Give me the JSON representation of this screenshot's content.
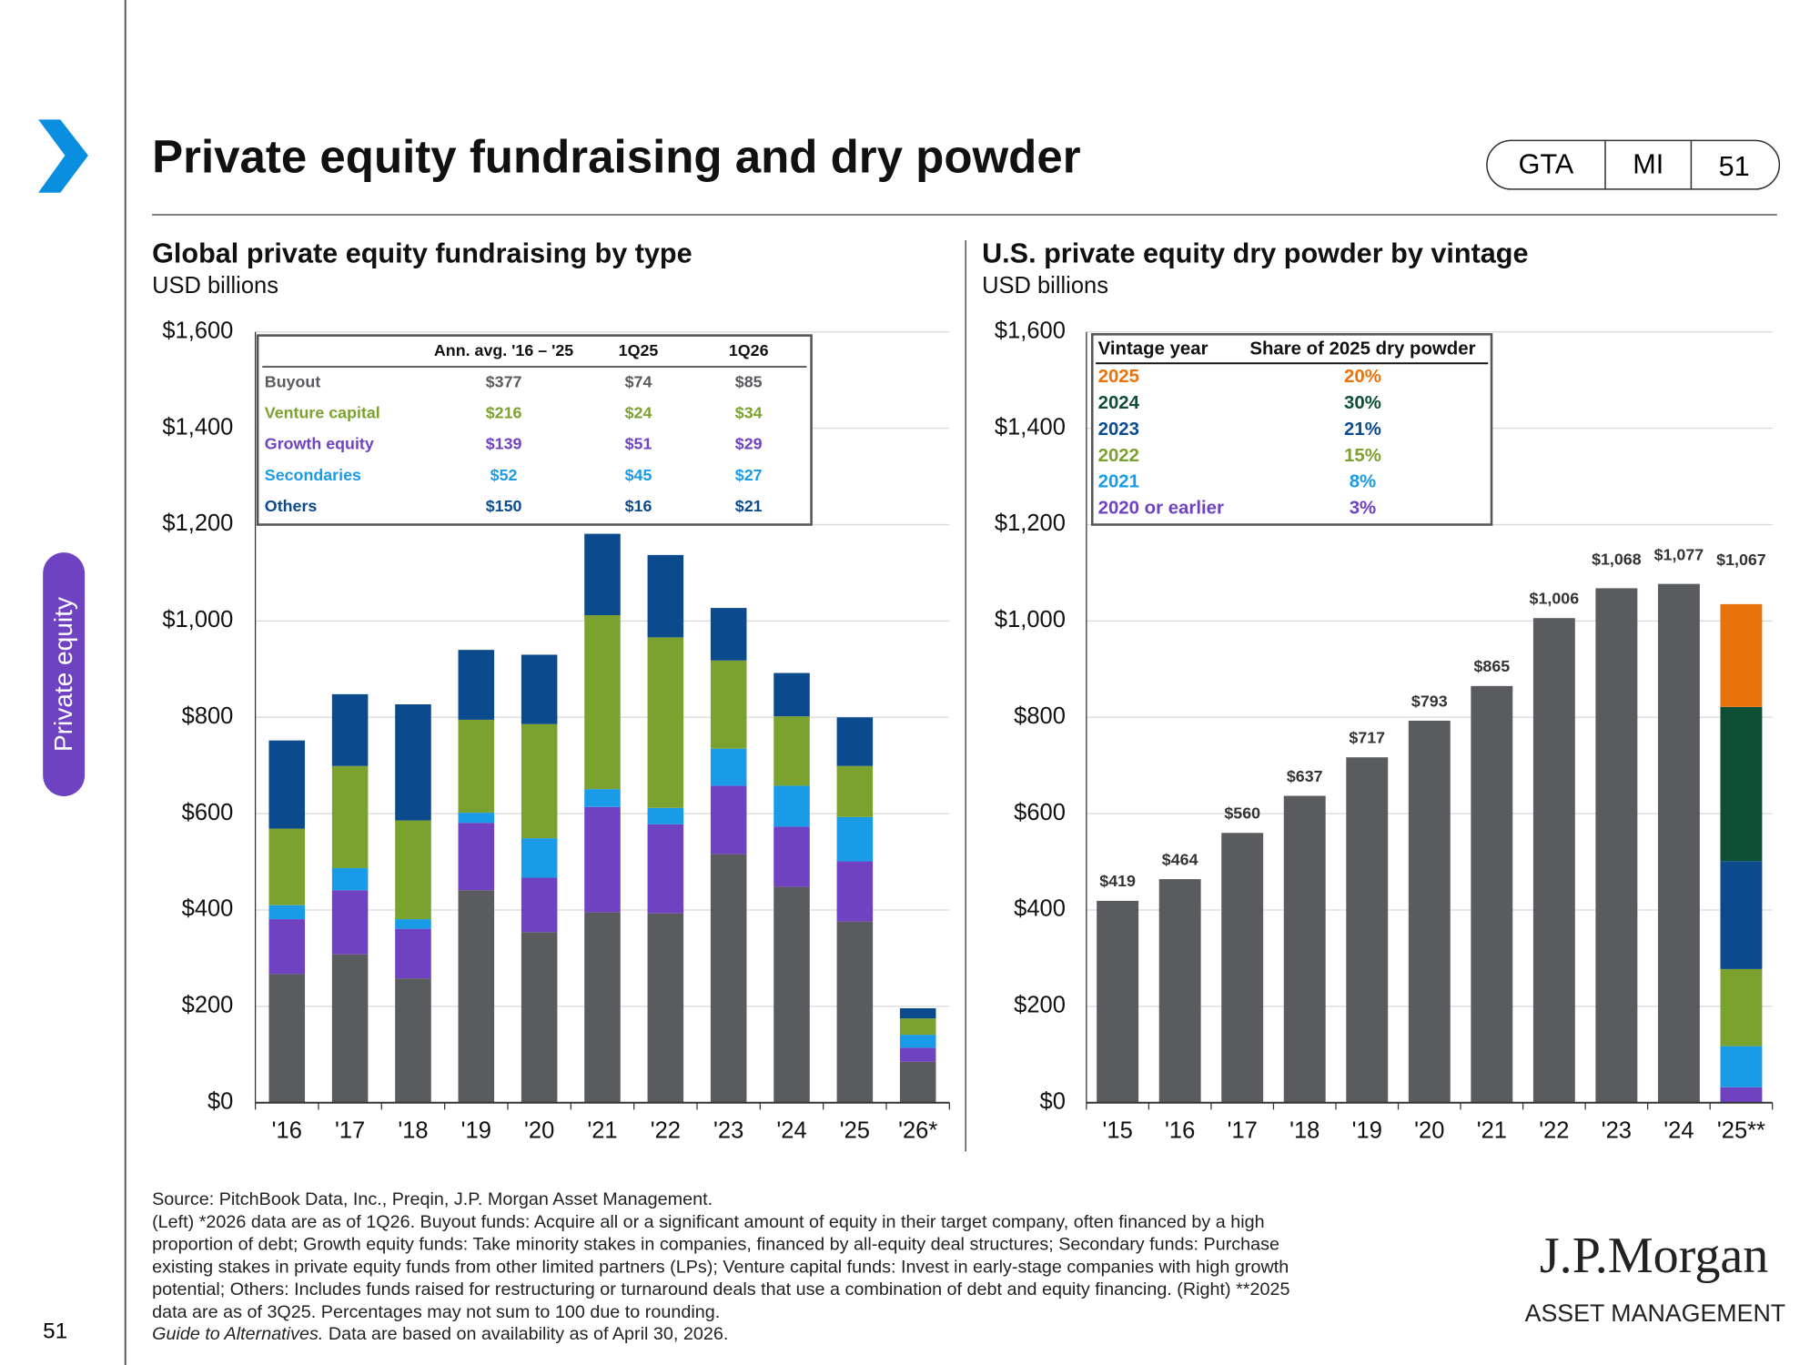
{
  "header": {
    "title": "Private equity fundraising and dry powder",
    "tags": [
      "GTA",
      "MI",
      "51"
    ],
    "section": "Private equity",
    "page": "51"
  },
  "chart_data": [
    {
      "type": "bar",
      "stacked": true,
      "title": "Global private equity fundraising by type",
      "subtitle": "USD billions",
      "categories": [
        "'16",
        "'17",
        "'18",
        "'19",
        "'20",
        "'21",
        "'22",
        "'23",
        "'24",
        "'25",
        "'26*"
      ],
      "series": [
        {
          "name": "Buyout",
          "color": "#595b5e",
          "values": [
            267,
            308,
            258,
            441,
            354,
            395,
            393,
            516,
            448,
            376,
            85
          ]
        },
        {
          "name": "Venture capital",
          "color": "#7ba12f",
          "values": [
            159,
            212,
            205,
            193,
            237,
            361,
            354,
            183,
            144,
            106,
            34
          ]
        },
        {
          "name": "Growth equity",
          "color": "#6f42c1",
          "values": [
            114,
            133,
            103,
            140,
            113,
            219,
            185,
            142,
            125,
            125,
            29
          ]
        },
        {
          "name": "Secondaries",
          "color": "#1a9be8",
          "values": [
            29,
            46,
            20,
            21,
            82,
            37,
            34,
            77,
            85,
            92,
            27
          ]
        },
        {
          "name": "Others",
          "color": "#0b4a8c",
          "values": [
            183,
            149,
            241,
            145,
            144,
            169,
            171,
            109,
            90,
            101,
            21
          ]
        }
      ],
      "summary_table": {
        "columns": [
          "Ann. avg. '16 – '25",
          "1Q25",
          "1Q26"
        ],
        "rows": [
          [
            "$377",
            "$74",
            "$85"
          ],
          [
            "$216",
            "$24",
            "$34"
          ],
          [
            "$139",
            "$51",
            "$29"
          ],
          [
            "$52",
            "$45",
            "$27"
          ],
          [
            "$150",
            "$16",
            "$21"
          ]
        ]
      },
      "ylim": [
        0,
        1600
      ],
      "yticks": [
        {
          "value": 0,
          "label": "$0"
        },
        {
          "value": 200,
          "label": "$200"
        },
        {
          "value": 400,
          "label": "$400"
        },
        {
          "value": 600,
          "label": "$600"
        },
        {
          "value": 800,
          "label": "$800"
        },
        {
          "value": 1000,
          "label": "$1,000"
        },
        {
          "value": 1200,
          "label": "$1,200"
        },
        {
          "value": 1400,
          "label": "$1,400"
        },
        {
          "value": 1600,
          "label": "$1,600"
        }
      ],
      "grid": true
    },
    {
      "type": "bar",
      "title": "U.S. private equity dry powder by vintage",
      "subtitle": "USD billions",
      "categories": [
        "'15",
        "'16",
        "'17",
        "'18",
        "'19",
        "'20",
        "'21",
        "'22",
        "'23",
        "'24",
        "'25**"
      ],
      "values": [
        419,
        464,
        560,
        637,
        717,
        793,
        865,
        1006,
        1068,
        1077,
        1067
      ],
      "value_labels": [
        "$419",
        "$464",
        "$560",
        "$637",
        "$717",
        "$793",
        "$865",
        "$1,006",
        "$1,068",
        "$1,077",
        "$1,067"
      ],
      "color": "#595b5e",
      "vintages": {
        "header": [
          "Vintage year",
          "Share of 2025 dry powder"
        ],
        "names": [
          "2025",
          "2024",
          "2023",
          "2022",
          "2021",
          "2020 or earlier"
        ],
        "colors": [
          "#e8730c",
          "#0d4f34",
          "#0b4a8c",
          "#7ba12f",
          "#1a9be8",
          "#6f42c1"
        ],
        "shares": [
          20,
          30,
          21,
          15,
          8,
          3
        ],
        "share_labels": [
          "20%",
          "30%",
          "21%",
          "15%",
          "8%",
          "3%"
        ]
      },
      "ylim": [
        0,
        1600
      ],
      "yticks": [
        {
          "value": 0,
          "label": "$0"
        },
        {
          "value": 200,
          "label": "$200"
        },
        {
          "value": 400,
          "label": "$400"
        },
        {
          "value": 600,
          "label": "$600"
        },
        {
          "value": 800,
          "label": "$800"
        },
        {
          "value": 1000,
          "label": "$1,000"
        },
        {
          "value": 1200,
          "label": "$1,200"
        },
        {
          "value": 1400,
          "label": "$1,400"
        },
        {
          "value": 1600,
          "label": "$1,600"
        }
      ],
      "grid": true
    }
  ],
  "footnotes": {
    "lines": [
      "Source: PitchBook Data, Inc., Preqin, J.P. Morgan Asset Management.",
      "(Left) *2026 data are as of 1Q26. Buyout funds: Acquire all or a significant amount of equity in their target company, often financed by a high",
      "proportion of debt; Growth equity funds: Take minority stakes in companies, financed by all-equity deal structures; Secondary funds: Purchase",
      "existing stakes in private equity funds from other limited partners (LPs); Venture capital funds: Invest in early-stage companies with high growth",
      "potential; Others: Includes funds raised for restructuring or turnaround deals that use a combination of debt and equity financing. (Right) **2025",
      "data are as of 3Q25. Percentages may not sum to 100 due to rounding."
    ],
    "guide": "Guide to Alternatives.",
    "availability": " Data are based on availability as of April 30, 2026."
  },
  "logo": {
    "name": "J.P.Morgan",
    "subtitle": "ASSET MANAGEMENT"
  }
}
